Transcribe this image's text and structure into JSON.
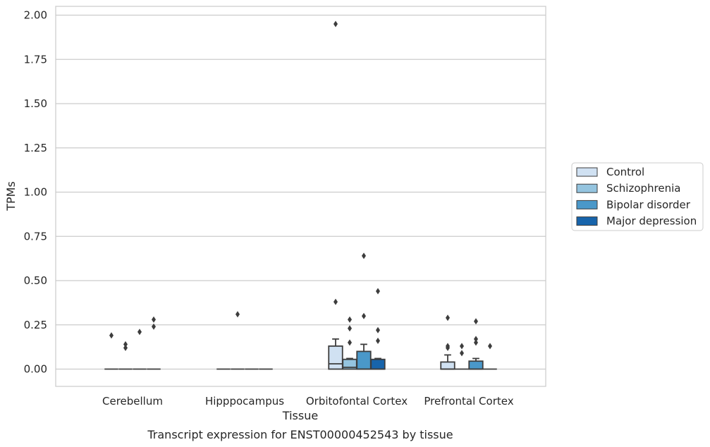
{
  "chart_data": {
    "type": "boxplot",
    "caption": "Transcript expression for ENST00000452543 by tissue",
    "xlabel": "Tissue",
    "ylabel": "TPMs",
    "ylim": [
      -0.1,
      2.05
    ],
    "yticks": [
      "0.00",
      "0.25",
      "0.50",
      "0.75",
      "1.00",
      "1.25",
      "1.50",
      "1.75",
      "2.00"
    ],
    "ytick_values": [
      0,
      0.25,
      0.5,
      0.75,
      1.0,
      1.25,
      1.5,
      1.75,
      2.0
    ],
    "categories": [
      "Cerebellum",
      "Hipppocampus",
      "Orbitofontal Cortex",
      "Prefrontal Cortex"
    ],
    "grid": true,
    "legend_position": "right",
    "series": [
      {
        "name": "Control",
        "color": "#d0e1f2",
        "boxes": [
          {
            "q1": 0,
            "median": 0,
            "q3": 0,
            "whislo": 0,
            "whishi": 0,
            "fliers": [
              0.19
            ]
          },
          {
            "q1": 0,
            "median": 0,
            "q3": 0,
            "whislo": 0,
            "whishi": 0,
            "fliers": []
          },
          {
            "q1": 0,
            "median": 0.03,
            "q3": 0.13,
            "whislo": 0,
            "whishi": 0.17,
            "fliers": [
              1.95,
              0.38
            ]
          },
          {
            "q1": 0,
            "median": 0,
            "q3": 0.04,
            "whislo": 0,
            "whishi": 0.08,
            "fliers": [
              0.29,
              0.13,
              0.12
            ]
          }
        ]
      },
      {
        "name": "Schizophrenia",
        "color": "#94c4df",
        "boxes": [
          {
            "q1": 0,
            "median": 0,
            "q3": 0,
            "whislo": 0,
            "whishi": 0,
            "fliers": [
              0.14,
              0.12
            ]
          },
          {
            "q1": 0,
            "median": 0,
            "q3": 0,
            "whislo": 0,
            "whishi": 0,
            "fliers": [
              0.31
            ]
          },
          {
            "q1": 0,
            "median": 0.01,
            "q3": 0.055,
            "whislo": 0,
            "whishi": 0.06,
            "fliers": [
              0.28,
              0.23,
              0.15
            ]
          },
          {
            "q1": 0,
            "median": 0,
            "q3": 0,
            "whislo": 0,
            "whishi": 0,
            "fliers": [
              0.13,
              0.09
            ]
          }
        ]
      },
      {
        "name": "Bipolar disorder",
        "color": "#4a98c9",
        "boxes": [
          {
            "q1": 0,
            "median": 0,
            "q3": 0,
            "whislo": 0,
            "whishi": 0,
            "fliers": [
              0.21
            ]
          },
          {
            "q1": 0,
            "median": 0,
            "q3": 0,
            "whislo": 0,
            "whishi": 0,
            "fliers": []
          },
          {
            "q1": 0,
            "median": 0,
            "q3": 0.1,
            "whislo": 0,
            "whishi": 0.14,
            "fliers": [
              0.64,
              0.3
            ]
          },
          {
            "q1": 0,
            "median": 0,
            "q3": 0.045,
            "whislo": 0,
            "whishi": 0.06,
            "fliers": [
              0.27,
              0.17,
              0.15
            ]
          }
        ]
      },
      {
        "name": "Major depression",
        "color": "#1764ab",
        "boxes": [
          {
            "q1": 0,
            "median": 0,
            "q3": 0,
            "whislo": 0,
            "whishi": 0,
            "fliers": [
              0.28,
              0.24
            ]
          },
          {
            "q1": 0,
            "median": 0,
            "q3": 0,
            "whislo": 0,
            "whishi": 0,
            "fliers": []
          },
          {
            "q1": 0,
            "median": 0,
            "q3": 0.055,
            "whislo": 0,
            "whishi": 0.06,
            "fliers": [
              0.44,
              0.22,
              0.16
            ]
          },
          {
            "q1": 0,
            "median": 0,
            "q3": 0,
            "whislo": 0,
            "whishi": 0,
            "fliers": [
              0.13
            ]
          }
        ]
      }
    ]
  }
}
